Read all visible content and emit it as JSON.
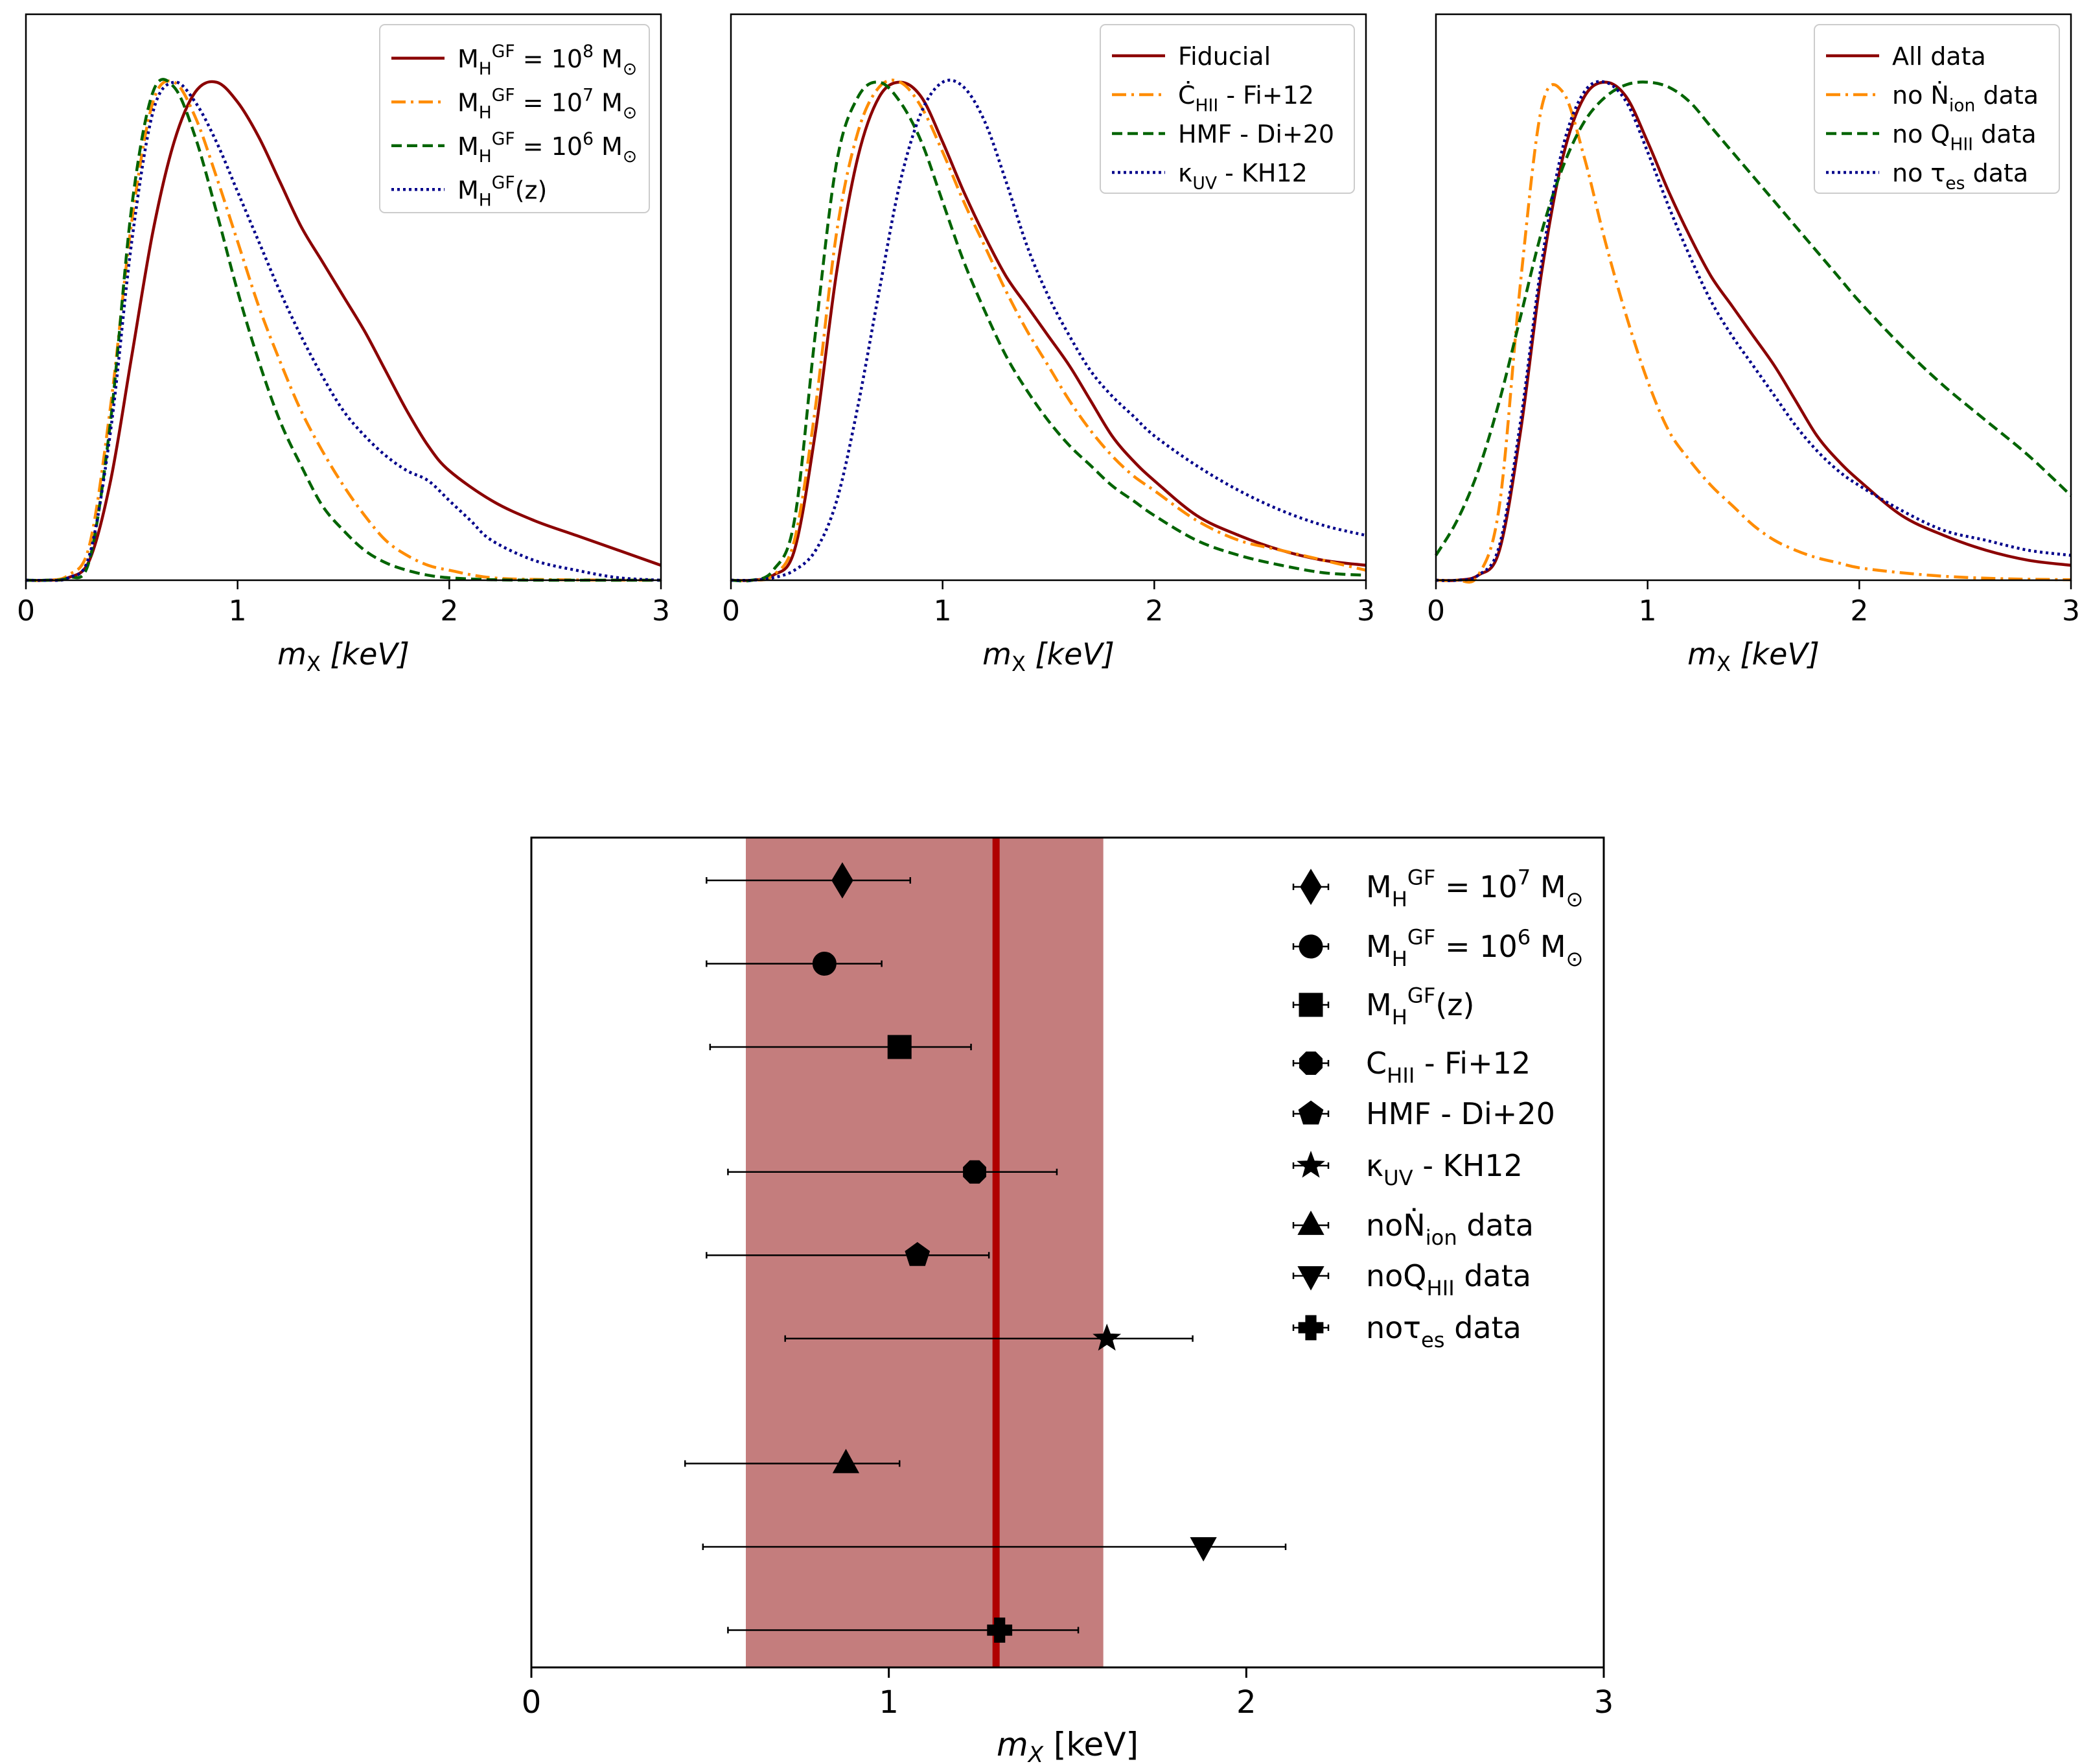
{
  "colors": {
    "darkred": "#8b0000",
    "orange": "#ff8c00",
    "green": "#006400",
    "navy": "#00008b",
    "band": "#c47d7d",
    "line": "#b00000"
  },
  "chart_data": [
    {
      "type": "line",
      "title": "",
      "xlabel": "m_X [keV]",
      "ylabel": "",
      "xlim": [
        0,
        3
      ],
      "xticks": [
        "0",
        "1",
        "2",
        "3"
      ],
      "legend": {
        "placement": "top-right"
      },
      "series": [
        {
          "name": "M_H^GF = 10^8 M_⊙",
          "color": "darkred",
          "dash": "solid",
          "x": [
            0,
            0.1,
            0.2,
            0.3,
            0.4,
            0.5,
            0.6,
            0.7,
            0.8,
            0.9,
            1.0,
            1.1,
            1.2,
            1.3,
            1.4,
            1.5,
            1.6,
            1.7,
            1.8,
            1.9,
            2.0,
            2.2,
            2.4,
            2.6,
            2.8,
            3.0
          ],
          "y": [
            0,
            0,
            0.005,
            0.04,
            0.2,
            0.45,
            0.7,
            0.88,
            0.98,
            1.0,
            0.96,
            0.89,
            0.8,
            0.71,
            0.64,
            0.57,
            0.5,
            0.42,
            0.34,
            0.27,
            0.22,
            0.16,
            0.12,
            0.09,
            0.06,
            0.03
          ]
        },
        {
          "name": "M_H^GF = 10^7 M_⊙",
          "color": "orange",
          "dash": "dashdot",
          "x": [
            0,
            0.1,
            0.2,
            0.3,
            0.4,
            0.5,
            0.6,
            0.7,
            0.8,
            0.9,
            1.0,
            1.1,
            1.2,
            1.3,
            1.4,
            1.5,
            1.6,
            1.7,
            1.8,
            1.9,
            2.0,
            2.2,
            2.5,
            3.0
          ],
          "y": [
            0,
            0,
            0.01,
            0.07,
            0.35,
            0.72,
            0.96,
            1.0,
            0.93,
            0.81,
            0.68,
            0.55,
            0.44,
            0.34,
            0.26,
            0.19,
            0.13,
            0.08,
            0.05,
            0.03,
            0.02,
            0.005,
            0.001,
            0
          ]
        },
        {
          "name": "M_H^GF = 10^6 M_⊙",
          "color": "green",
          "dash": "dashed",
          "x": [
            0,
            0.1,
            0.2,
            0.3,
            0.4,
            0.5,
            0.6,
            0.7,
            0.8,
            0.9,
            1.0,
            1.1,
            1.2,
            1.3,
            1.4,
            1.5,
            1.6,
            1.7,
            1.8,
            1.9,
            2.0,
            2.2,
            2.5,
            3.0
          ],
          "y": [
            0,
            0,
            0.005,
            0.04,
            0.32,
            0.75,
            0.98,
            0.99,
            0.89,
            0.74,
            0.58,
            0.44,
            0.32,
            0.23,
            0.15,
            0.1,
            0.06,
            0.035,
            0.02,
            0.01,
            0.005,
            0.001,
            0,
            0
          ]
        },
        {
          "name": "M_H^GF(z)",
          "color": "navy",
          "dash": "dotted",
          "x": [
            0,
            0.1,
            0.2,
            0.3,
            0.4,
            0.5,
            0.6,
            0.7,
            0.8,
            0.9,
            1.0,
            1.1,
            1.2,
            1.3,
            1.4,
            1.5,
            1.6,
            1.7,
            1.8,
            1.9,
            2.0,
            2.1,
            2.2,
            2.4,
            2.6,
            2.8,
            3.0
          ],
          "y": [
            0,
            0,
            0.005,
            0.05,
            0.3,
            0.68,
            0.94,
            1.0,
            0.96,
            0.88,
            0.78,
            0.68,
            0.58,
            0.49,
            0.41,
            0.34,
            0.29,
            0.25,
            0.22,
            0.2,
            0.16,
            0.12,
            0.08,
            0.04,
            0.02,
            0.005,
            0
          ]
        }
      ]
    },
    {
      "type": "line",
      "title": "",
      "xlabel": "m_X [keV]",
      "ylabel": "",
      "xlim": [
        0,
        3
      ],
      "xticks": [
        "0",
        "1",
        "2",
        "3"
      ],
      "legend": {
        "placement": "top-right"
      },
      "series": [
        {
          "name": "Fiducial",
          "color": "darkred",
          "dash": "solid",
          "x": [
            0,
            0.1,
            0.2,
            0.3,
            0.4,
            0.5,
            0.6,
            0.7,
            0.8,
            0.9,
            1.0,
            1.1,
            1.2,
            1.3,
            1.4,
            1.5,
            1.6,
            1.7,
            1.8,
            1.9,
            2.0,
            2.2,
            2.4,
            2.6,
            2.8,
            3.0
          ],
          "y": [
            0,
            0,
            0.01,
            0.06,
            0.3,
            0.62,
            0.85,
            0.97,
            1.0,
            0.97,
            0.88,
            0.78,
            0.69,
            0.61,
            0.55,
            0.49,
            0.43,
            0.36,
            0.29,
            0.24,
            0.2,
            0.13,
            0.09,
            0.06,
            0.04,
            0.03
          ]
        },
        {
          "name": "Ċ_HII - Fi+12",
          "color": "orange",
          "dash": "dashdot",
          "x": [
            0,
            0.1,
            0.2,
            0.3,
            0.4,
            0.5,
            0.6,
            0.7,
            0.8,
            0.9,
            1.0,
            1.1,
            1.2,
            1.3,
            1.4,
            1.5,
            1.6,
            1.7,
            1.8,
            1.9,
            2.0,
            2.2,
            2.4,
            2.6,
            2.8,
            3.0
          ],
          "y": [
            0,
            0,
            0.01,
            0.08,
            0.35,
            0.7,
            0.9,
            0.99,
            1.0,
            0.95,
            0.86,
            0.76,
            0.67,
            0.58,
            0.5,
            0.43,
            0.36,
            0.3,
            0.25,
            0.21,
            0.18,
            0.12,
            0.08,
            0.06,
            0.04,
            0.02
          ]
        },
        {
          "name": "HMF - Di+20",
          "color": "green",
          "dash": "dashed",
          "x": [
            0,
            0.1,
            0.2,
            0.3,
            0.4,
            0.5,
            0.6,
            0.7,
            0.8,
            0.9,
            1.0,
            1.1,
            1.2,
            1.3,
            1.4,
            1.5,
            1.6,
            1.7,
            1.8,
            1.9,
            2.0,
            2.2,
            2.4,
            2.6,
            2.8,
            3.0
          ],
          "y": [
            0,
            0,
            0.02,
            0.12,
            0.5,
            0.84,
            0.97,
            1.0,
            0.96,
            0.88,
            0.76,
            0.64,
            0.54,
            0.45,
            0.38,
            0.32,
            0.27,
            0.23,
            0.19,
            0.16,
            0.13,
            0.08,
            0.05,
            0.03,
            0.015,
            0.01
          ]
        },
        {
          "name": "κ_UV - KH12",
          "color": "navy",
          "dash": "dotted",
          "x": [
            0,
            0.1,
            0.2,
            0.3,
            0.4,
            0.5,
            0.6,
            0.7,
            0.8,
            0.9,
            1.0,
            1.1,
            1.2,
            1.3,
            1.4,
            1.5,
            1.6,
            1.7,
            1.8,
            1.9,
            2.0,
            2.2,
            2.4,
            2.6,
            2.8,
            3.0
          ],
          "y": [
            0,
            0,
            0.005,
            0.02,
            0.06,
            0.16,
            0.35,
            0.58,
            0.8,
            0.94,
            1.0,
            0.99,
            0.92,
            0.8,
            0.67,
            0.57,
            0.49,
            0.42,
            0.37,
            0.33,
            0.29,
            0.23,
            0.18,
            0.14,
            0.11,
            0.09
          ]
        }
      ]
    },
    {
      "type": "line",
      "title": "",
      "xlabel": "m_X [keV]",
      "ylabel": "",
      "xlim": [
        0,
        3
      ],
      "xticks": [
        "0",
        "1",
        "2",
        "3"
      ],
      "legend": {
        "placement": "top-right"
      },
      "series": [
        {
          "name": "All data",
          "color": "darkred",
          "dash": "solid",
          "x": [
            0,
            0.1,
            0.2,
            0.3,
            0.4,
            0.5,
            0.6,
            0.7,
            0.8,
            0.9,
            1.0,
            1.1,
            1.2,
            1.3,
            1.4,
            1.5,
            1.6,
            1.7,
            1.8,
            1.9,
            2.0,
            2.2,
            2.4,
            2.6,
            2.8,
            3.0
          ],
          "y": [
            0,
            0,
            0.01,
            0.06,
            0.3,
            0.62,
            0.85,
            0.97,
            1.0,
            0.97,
            0.88,
            0.78,
            0.69,
            0.61,
            0.55,
            0.49,
            0.43,
            0.36,
            0.29,
            0.24,
            0.2,
            0.13,
            0.09,
            0.06,
            0.04,
            0.03
          ]
        },
        {
          "name": "no Ṅ_ion data",
          "color": "orange",
          "dash": "dashdot",
          "x": [
            0,
            0.1,
            0.2,
            0.3,
            0.4,
            0.5,
            0.6,
            0.7,
            0.8,
            0.9,
            1.0,
            1.1,
            1.2,
            1.3,
            1.4,
            1.5,
            1.6,
            1.7,
            1.8,
            1.9,
            2.0,
            2.2,
            2.4,
            2.6,
            2.8,
            3.0
          ],
          "y": [
            0,
            0,
            0.01,
            0.15,
            0.6,
            0.95,
            0.98,
            0.85,
            0.68,
            0.53,
            0.4,
            0.3,
            0.24,
            0.19,
            0.15,
            0.11,
            0.08,
            0.06,
            0.045,
            0.035,
            0.025,
            0.015,
            0.008,
            0.004,
            0.002,
            0.001
          ]
        },
        {
          "name": "no Q_HII data",
          "color": "green",
          "dash": "dashed",
          "x": [
            0,
            0.1,
            0.2,
            0.3,
            0.4,
            0.5,
            0.6,
            0.7,
            0.8,
            0.9,
            1.0,
            1.1,
            1.2,
            1.3,
            1.4,
            1.5,
            1.6,
            1.7,
            1.8,
            1.9,
            2.0,
            2.2,
            2.4,
            2.6,
            2.8,
            3.0
          ],
          "y": [
            0.05,
            0.12,
            0.22,
            0.36,
            0.53,
            0.7,
            0.83,
            0.92,
            0.97,
            0.995,
            1.0,
            0.99,
            0.96,
            0.91,
            0.86,
            0.81,
            0.76,
            0.71,
            0.66,
            0.61,
            0.56,
            0.47,
            0.39,
            0.32,
            0.25,
            0.17
          ]
        },
        {
          "name": "no τ_es data",
          "color": "navy",
          "dash": "dotted",
          "x": [
            0,
            0.1,
            0.2,
            0.3,
            0.4,
            0.5,
            0.6,
            0.7,
            0.8,
            0.9,
            1.0,
            1.1,
            1.2,
            1.3,
            1.4,
            1.5,
            1.6,
            1.7,
            1.8,
            1.9,
            2.0,
            2.2,
            2.4,
            2.6,
            2.8,
            3.0
          ],
          "y": [
            0,
            0,
            0.01,
            0.07,
            0.32,
            0.64,
            0.87,
            0.98,
            1.0,
            0.96,
            0.86,
            0.75,
            0.65,
            0.56,
            0.49,
            0.43,
            0.37,
            0.31,
            0.26,
            0.22,
            0.19,
            0.14,
            0.1,
            0.08,
            0.06,
            0.05
          ]
        }
      ]
    },
    {
      "type": "scatter",
      "title": "",
      "xlabel": "m_X [keV]",
      "ylabel": "",
      "xlim": [
        0,
        3
      ],
      "xticks": [
        "0",
        "1",
        "2",
        "3"
      ],
      "reference": {
        "value": 1.3,
        "band": [
          0.6,
          1.6
        ]
      },
      "legend": {
        "placement": "top-right"
      },
      "points": [
        {
          "name": "M_H^GF = 10^7 M_⊙",
          "marker": "diamond",
          "x": 0.87,
          "xerr": [
            0.49,
            1.06
          ],
          "row": 1
        },
        {
          "name": "M_H^GF = 10^6 M_⊙",
          "marker": "circle",
          "x": 0.82,
          "xerr": [
            0.49,
            0.98
          ],
          "row": 2
        },
        {
          "name": "M_H^GF(z)",
          "marker": "square",
          "x": 1.03,
          "xerr": [
            0.5,
            1.23
          ],
          "row": 3
        },
        {
          "name": "C_HII - Fi+12",
          "marker": "octagon",
          "x": 1.24,
          "xerr": [
            0.55,
            1.47
          ],
          "row": 4.5
        },
        {
          "name": "HMF - Di+20",
          "marker": "pentagon",
          "x": 1.08,
          "xerr": [
            0.49,
            1.28
          ],
          "row": 5.5
        },
        {
          "name": "κ_UV - KH12",
          "marker": "star",
          "x": 1.61,
          "xerr": [
            0.71,
            1.85
          ],
          "row": 6.5
        },
        {
          "name": "noṄ_ion data",
          "marker": "triangle-up",
          "x": 0.88,
          "xerr": [
            0.43,
            1.03
          ],
          "row": 8
        },
        {
          "name": "noQ_HII data",
          "marker": "triangle-down",
          "x": 1.88,
          "xerr": [
            0.48,
            2.11
          ],
          "row": 9
        },
        {
          "name": "noτ_es data",
          "marker": "plus",
          "x": 1.31,
          "xerr": [
            0.55,
            1.53
          ],
          "row": 10
        }
      ]
    }
  ]
}
